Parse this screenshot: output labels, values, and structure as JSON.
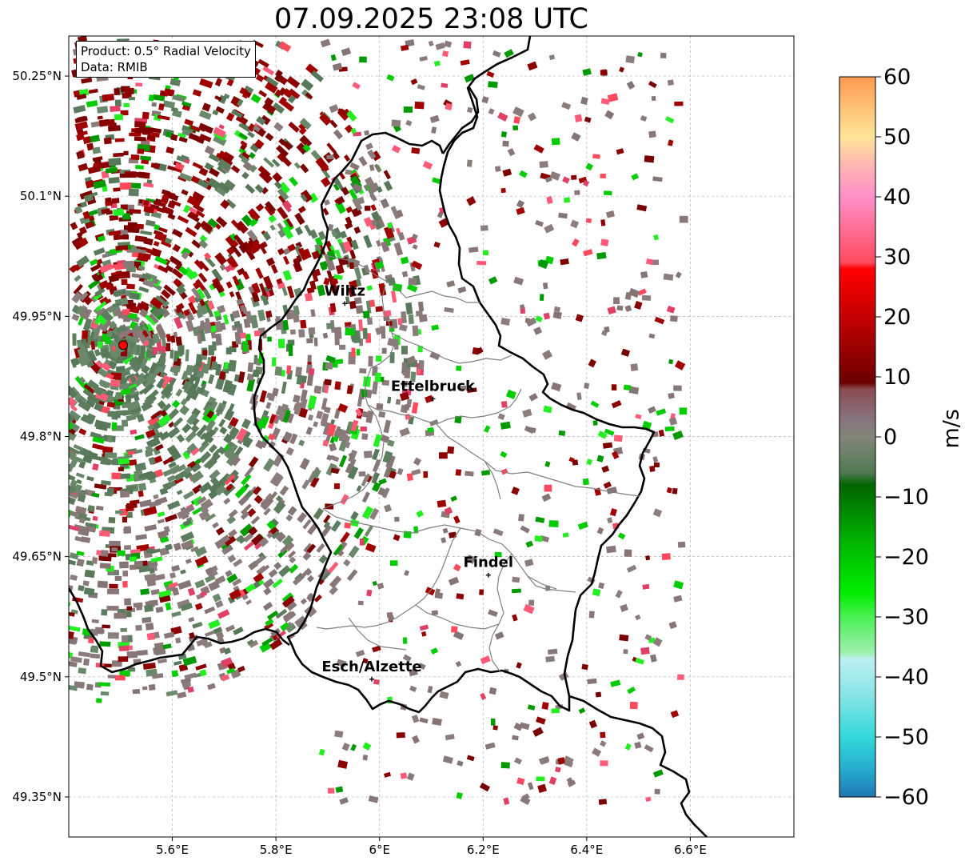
{
  "title": "07.09.2025 23:08 UTC",
  "product_box": {
    "line1": "Product: 0.5° Radial Velocity",
    "line2": "Data: RMIB"
  },
  "map": {
    "lon_range": [
      5.4,
      6.8
    ],
    "lat_range": [
      49.3,
      50.3
    ],
    "x_ticks": [
      "5.6°E",
      "5.8°E",
      "6°E",
      "6.2°E",
      "6.4°E",
      "6.6°E"
    ],
    "x_tick_values": [
      5.6,
      5.8,
      6.0,
      6.2,
      6.4,
      6.6
    ],
    "y_ticks": [
      "50.25°N",
      "50.1°N",
      "49.95°N",
      "49.8°N",
      "49.65°N",
      "49.5°N",
      "49.35°N"
    ],
    "y_tick_values": [
      50.25,
      50.1,
      49.95,
      49.8,
      49.65,
      49.5,
      49.35
    ],
    "grid": true,
    "radar_site": {
      "lon": 5.505,
      "lat": 49.914
    },
    "cities": [
      {
        "name": "Wiltz",
        "lon": 5.933,
        "lat": 49.966
      },
      {
        "name": "Ettelbruck",
        "lon": 6.103,
        "lat": 49.847
      },
      {
        "name": "Findel",
        "lon": 6.21,
        "lat": 49.627
      },
      {
        "name": "Esch/Alzette",
        "lon": 5.985,
        "lat": 49.497
      }
    ]
  },
  "colorbar": {
    "unit": "m/s",
    "range": [
      -60,
      60
    ],
    "ticks": [
      "60",
      "50",
      "40",
      "30",
      "20",
      "10",
      "0",
      "−10",
      "−20",
      "−30",
      "−40",
      "−50",
      "−60"
    ],
    "tick_values": [
      60,
      50,
      40,
      30,
      20,
      10,
      0,
      -10,
      -20,
      -30,
      -40,
      -50,
      -60
    ],
    "stops": [
      {
        "v": -60,
        "color": "#1f77b4"
      },
      {
        "v": -55,
        "color": "#27b0cf"
      },
      {
        "v": -50,
        "color": "#33d9d9"
      },
      {
        "v": -43,
        "color": "#88e4e6"
      },
      {
        "v": -37,
        "color": "#bdf0f0"
      },
      {
        "v": -36,
        "color": "#9ef0b0"
      },
      {
        "v": -30,
        "color": "#4cf055"
      },
      {
        "v": -26,
        "color": "#00ee00"
      },
      {
        "v": -18,
        "color": "#00b800"
      },
      {
        "v": -8,
        "color": "#006400"
      },
      {
        "v": -6,
        "color": "#4f7a52"
      },
      {
        "v": 0,
        "color": "#84857a"
      },
      {
        "v": 3,
        "color": "#86737d"
      },
      {
        "v": 8,
        "color": "#8b4a50"
      },
      {
        "v": 9,
        "color": "#6b0000"
      },
      {
        "v": 20,
        "color": "#c40000"
      },
      {
        "v": 28,
        "color": "#ff0000"
      },
      {
        "v": 29,
        "color": "#ff4a5e"
      },
      {
        "v": 40,
        "color": "#ff90c8"
      },
      {
        "v": 45,
        "color": "#ffb4b4"
      },
      {
        "v": 50,
        "color": "#ffe59a"
      },
      {
        "v": 60,
        "color": "#ff9a50"
      }
    ]
  },
  "colors": {
    "border": "#000000",
    "admin": "#808080",
    "radar_marker": "#ff0000"
  }
}
